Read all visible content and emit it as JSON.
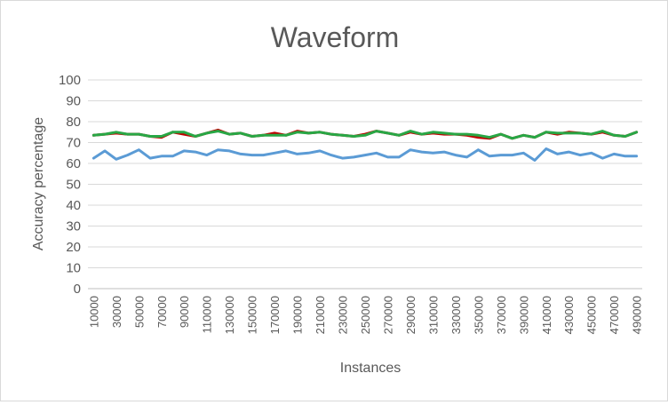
{
  "chart_data": {
    "type": "line",
    "title": "Waveform",
    "xlabel": "Instances",
    "ylabel": "Accuracy percentage",
    "ylim": [
      0,
      100
    ],
    "y_ticks": [
      "0",
      "10",
      "20",
      "30",
      "40",
      "50",
      "60",
      "70",
      "80",
      "90",
      "100"
    ],
    "grid": true,
    "legend": "none",
    "x": [
      10000,
      20000,
      30000,
      40000,
      50000,
      60000,
      70000,
      80000,
      90000,
      100000,
      110000,
      120000,
      130000,
      140000,
      150000,
      160000,
      170000,
      180000,
      190000,
      200000,
      210000,
      220000,
      230000,
      240000,
      250000,
      260000,
      270000,
      280000,
      290000,
      300000,
      310000,
      320000,
      330000,
      340000,
      350000,
      360000,
      370000,
      380000,
      390000,
      400000,
      410000,
      420000,
      430000,
      440000,
      450000,
      460000,
      470000,
      480000,
      490000
    ],
    "x_tick_labels": [
      "10000",
      "30000",
      "50000",
      "70000",
      "90000",
      "110000",
      "130000",
      "150000",
      "170000",
      "190000",
      "210000",
      "230000",
      "250000",
      "270000",
      "290000",
      "310000",
      "330000",
      "350000",
      "370000",
      "390000",
      "410000",
      "430000",
      "450000",
      "470000",
      "490000"
    ],
    "series": [
      {
        "color": "#5b9bd5",
        "values": [
          62.5,
          66,
          62,
          64,
          66.5,
          62.5,
          63.5,
          63.5,
          66,
          65.5,
          64,
          66.5,
          66,
          64.5,
          64,
          64,
          65,
          66,
          64.5,
          65,
          66,
          64,
          62.5,
          63,
          64,
          65,
          63,
          63,
          66.5,
          65.5,
          65,
          65.5,
          64,
          63,
          66.5,
          63.5,
          64,
          64,
          65,
          61.5,
          67,
          64.5,
          65.5,
          64,
          65,
          62.5,
          64.5,
          63.5,
          63.5
        ]
      },
      {
        "color": "#c00000",
        "values": [
          73.5,
          74,
          74.5,
          74,
          74,
          73,
          72.5,
          75,
          74,
          73,
          74.5,
          76,
          74,
          74.5,
          73,
          73.5,
          74.5,
          73.5,
          75.5,
          74.5,
          75,
          74,
          73.5,
          73,
          74,
          75.5,
          74.5,
          73.5,
          75,
          74,
          74.5,
          74,
          74,
          73.5,
          72.5,
          72,
          74,
          72,
          73.5,
          72.5,
          75,
          74,
          75,
          74.5,
          74,
          75,
          73.5,
          73,
          75
        ]
      },
      {
        "color": "#28a745",
        "values": [
          73.5,
          74,
          75,
          74,
          74,
          73,
          73,
          75,
          75,
          73,
          74.5,
          75.5,
          74,
          74.5,
          73,
          73.5,
          73.5,
          73.5,
          75,
          74.5,
          75,
          74,
          73.5,
          73,
          73.5,
          75.5,
          74.5,
          73.5,
          75.5,
          74,
          75,
          74.5,
          74,
          74,
          73.5,
          72.5,
          74,
          72,
          73.5,
          72.5,
          75,
          74.5,
          74.5,
          74.5,
          74,
          75.5,
          73.5,
          73,
          75
        ]
      }
    ]
  }
}
